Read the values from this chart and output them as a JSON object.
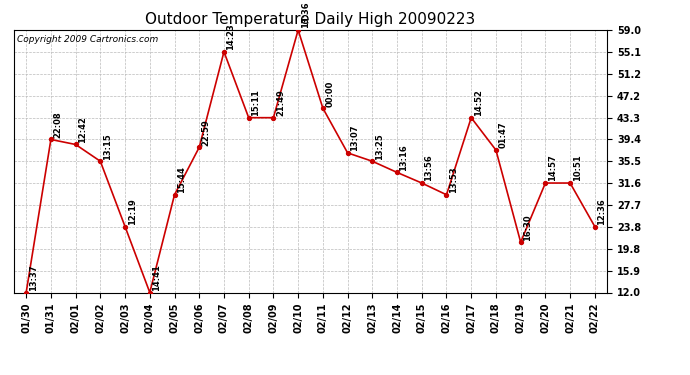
{
  "title": "Outdoor Temperature Daily High 20090223",
  "copyright": "Copyright 2009 Cartronics.com",
  "dates": [
    "01/30",
    "01/31",
    "02/01",
    "02/02",
    "02/03",
    "02/04",
    "02/05",
    "02/06",
    "02/07",
    "02/08",
    "02/09",
    "02/10",
    "02/11",
    "02/12",
    "02/13",
    "02/14",
    "02/15",
    "02/16",
    "02/17",
    "02/18",
    "02/19",
    "02/20",
    "02/21",
    "02/22"
  ],
  "values": [
    12.0,
    39.4,
    38.5,
    35.5,
    23.8,
    12.0,
    29.5,
    38.0,
    55.1,
    43.3,
    43.3,
    59.0,
    45.0,
    37.0,
    35.5,
    33.5,
    31.6,
    29.5,
    43.3,
    37.5,
    21.0,
    31.6,
    31.6,
    23.8
  ],
  "labels": [
    "13:37",
    "22:08",
    "12:42",
    "13:15",
    "12:19",
    "14:41",
    "15:44",
    "22:59",
    "14:23",
    "15:11",
    "21:49",
    "13:36",
    "00:00",
    "13:07",
    "13:25",
    "13:16",
    "13:56",
    "13:53",
    "14:52",
    "01:47",
    "16:30",
    "14:57",
    "10:51",
    "12:36"
  ],
  "yticks": [
    12.0,
    15.9,
    19.8,
    23.8,
    27.7,
    31.6,
    35.5,
    39.4,
    43.3,
    47.2,
    51.2,
    55.1,
    59.0
  ],
  "ylim": [
    12.0,
    59.0
  ],
  "line_color": "#cc0000",
  "marker_color": "#cc0000",
  "bg_color": "#ffffff",
  "grid_color": "#bbbbbb",
  "title_fontsize": 11,
  "label_fontsize": 6,
  "tick_fontsize": 7,
  "copyright_fontsize": 6.5
}
